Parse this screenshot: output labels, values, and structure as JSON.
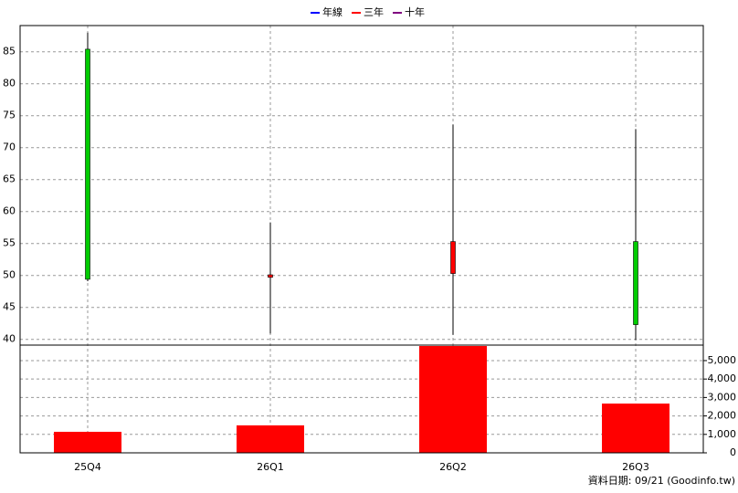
{
  "chart_data": {
    "type": "candlestick",
    "legend": [
      {
        "name": "年線",
        "color": "#0000ff"
      },
      {
        "name": "三年",
        "color": "#ff0000"
      },
      {
        "name": "十年",
        "color": "#800080"
      }
    ],
    "categories": [
      "25Q4",
      "26Q1",
      "26Q2",
      "26Q3"
    ],
    "open": [
      85.4,
      49.7,
      50.3,
      55.3
    ],
    "high": [
      88,
      58.3,
      73.6,
      72.9
    ],
    "low": [
      49.1,
      40.9,
      40.7,
      39.9
    ],
    "close": [
      49.4,
      50.1,
      55.3,
      42.3
    ],
    "volume": [
      1140,
      1490,
      5790,
      2670
    ],
    "up_color": "#ff0000",
    "down_color": "#00cc00",
    "volume_color": "#ff0000",
    "ylim": [
      39.1,
      89.1
    ],
    "yticks": [
      40,
      45,
      50,
      55,
      60,
      65,
      70,
      75,
      80,
      85
    ],
    "y2lim": [
      0,
      5840
    ],
    "y2ticks": [
      0,
      {
        "value": 1000,
        "label": "1,000"
      },
      {
        "value": 2000,
        "label": "2,000"
      },
      {
        "value": 3000,
        "label": "3,000"
      },
      {
        "value": 4000,
        "label": "4,000"
      },
      {
        "value": 5000,
        "label": "5,000"
      }
    ],
    "grid": true,
    "footer": "資料日期: 09/21  (Goodinfo.tw)"
  }
}
